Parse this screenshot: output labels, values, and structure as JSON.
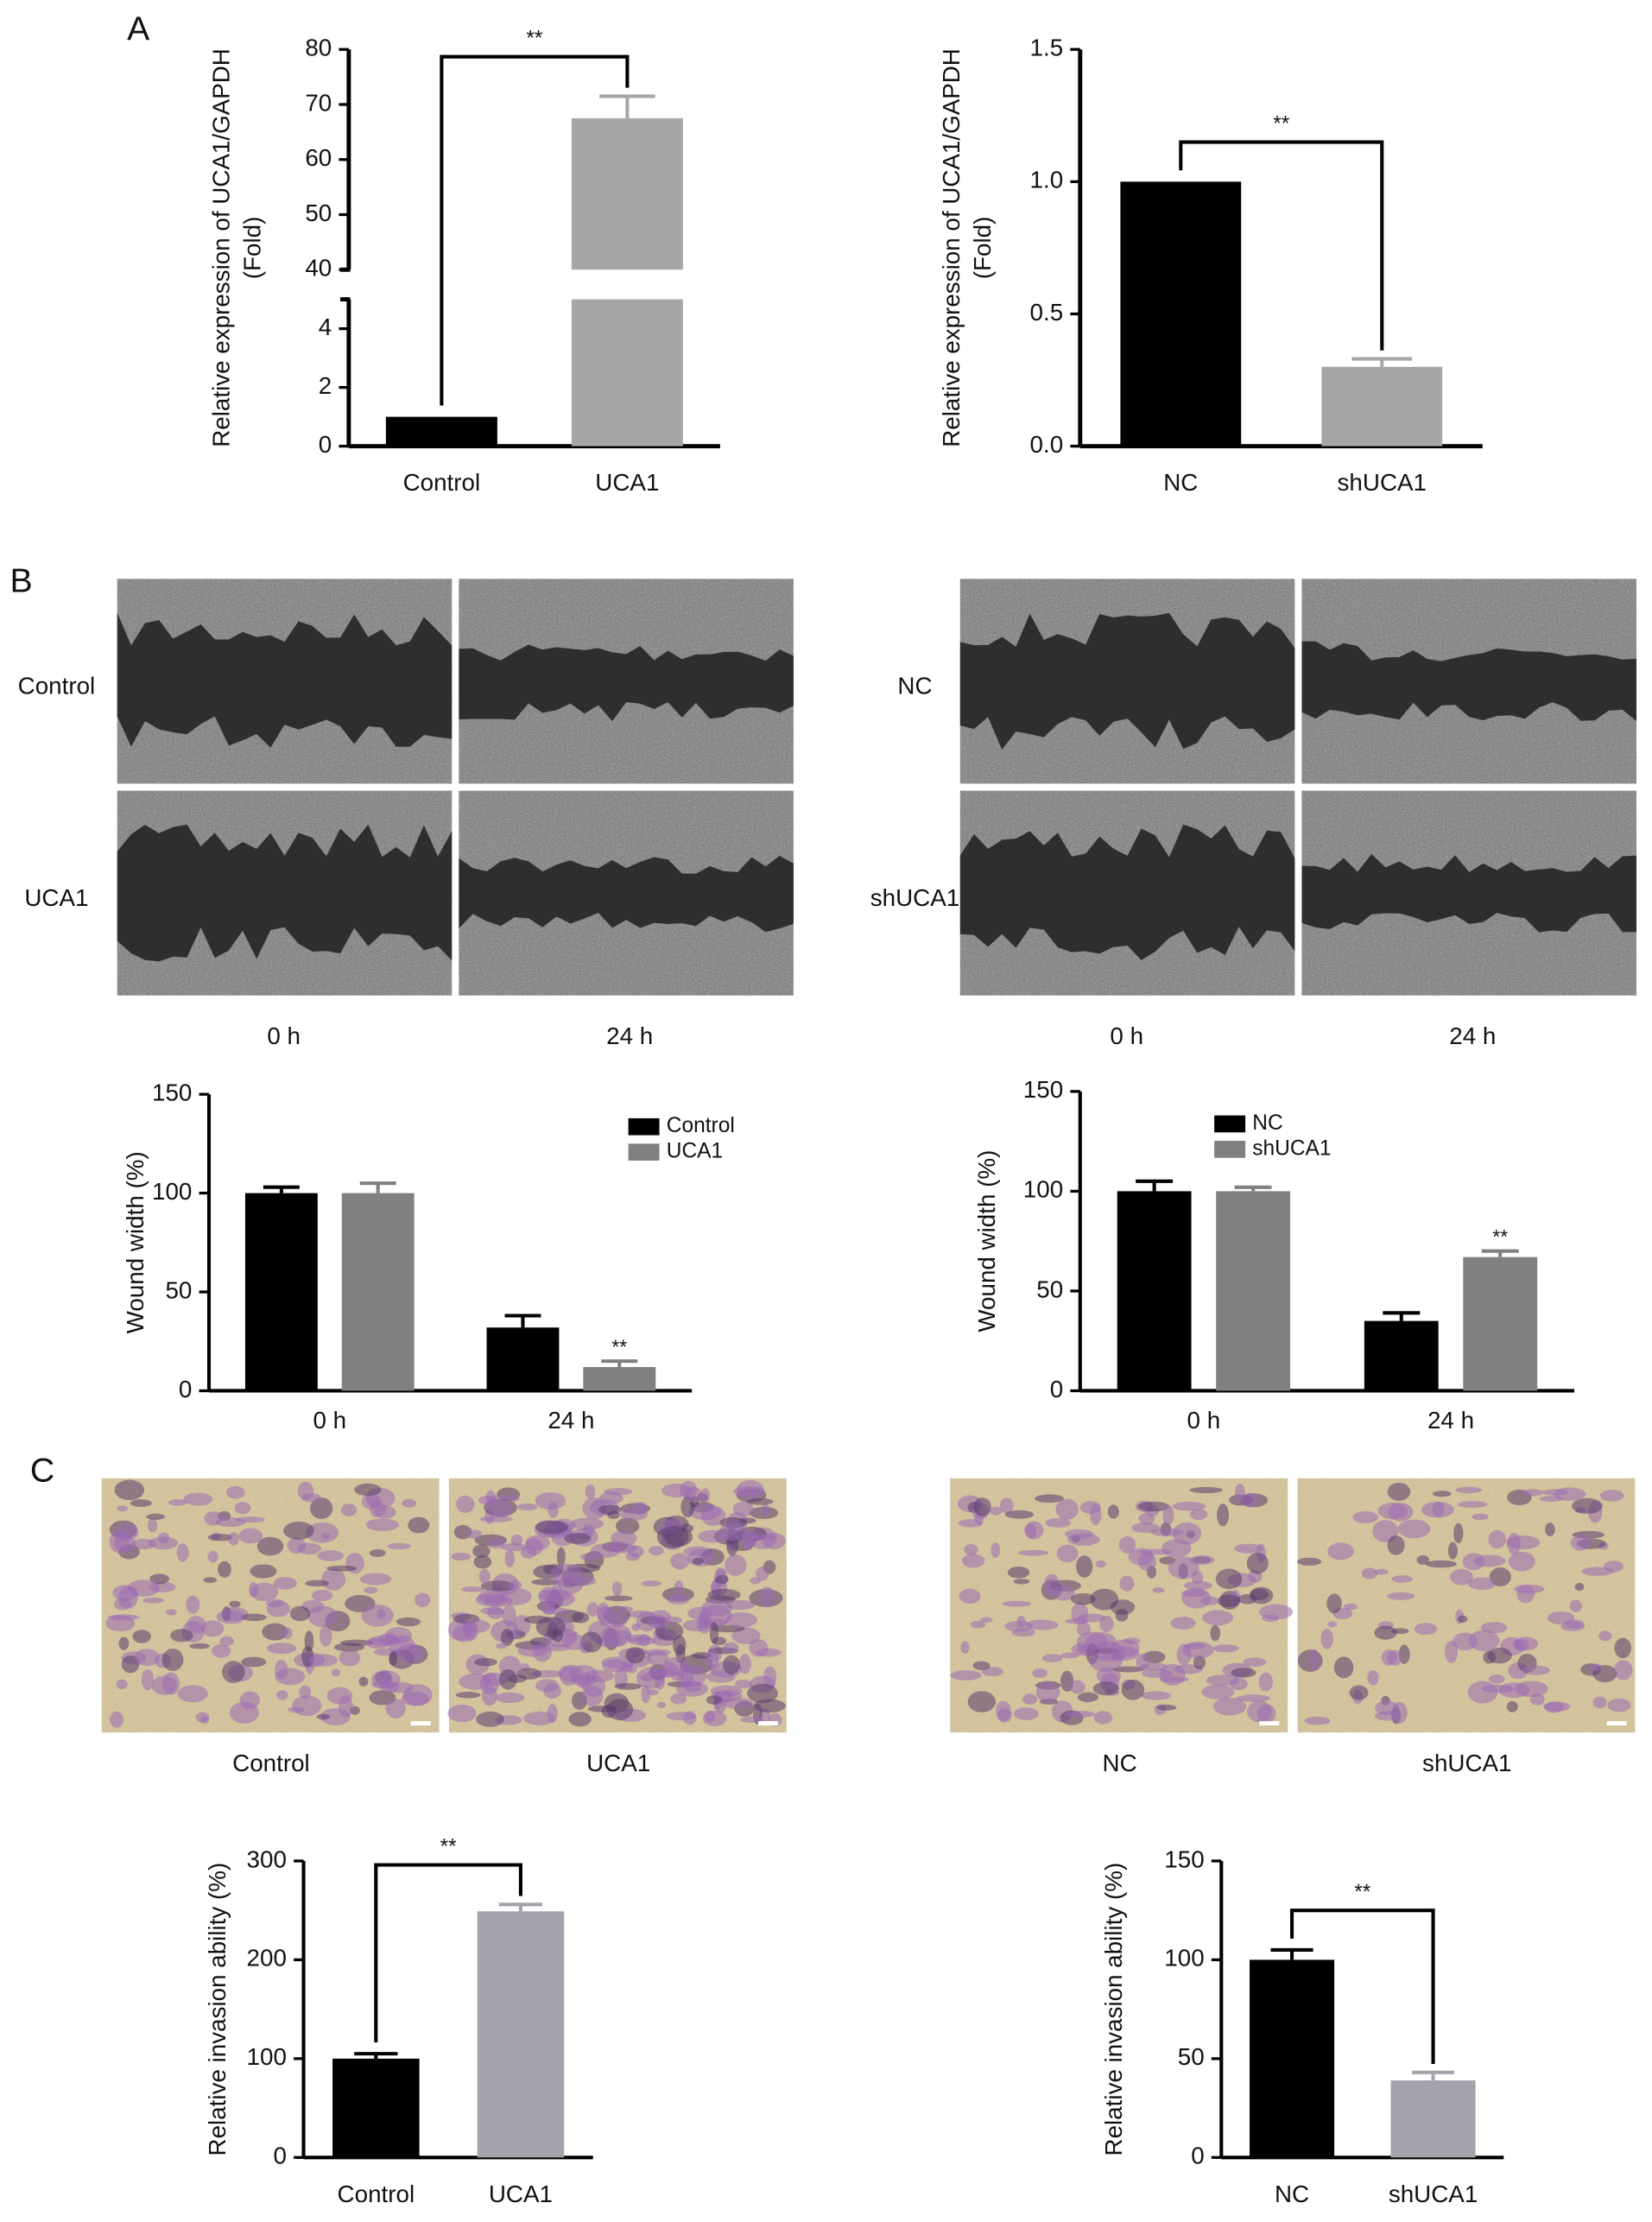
{
  "figure": {
    "panel_labels": [
      "A",
      "B",
      "C"
    ],
    "wound_left": {
      "rows": [
        "Control",
        "UCA1"
      ],
      "cols": [
        "0 h",
        "24 h"
      ]
    },
    "wound_right": {
      "rows": [
        "NC",
        "shUCA1"
      ],
      "cols": [
        "0 h",
        "24 h"
      ]
    },
    "invasion_left": [
      "Control",
      "UCA1"
    ],
    "invasion_right": [
      "NC",
      "shUCA1"
    ]
  },
  "chart_data": [
    {
      "type": "bar",
      "ylabel": [
        "Relative expression of UCA1/GAPDH",
        "(Fold)"
      ],
      "categories": [
        "Control",
        "UCA1"
      ],
      "values": [
        1,
        67.5
      ],
      "errors": [
        0,
        4
      ],
      "colors": [
        "#000000",
        "#a6a6a6"
      ],
      "ylim": [
        0,
        80
      ],
      "ybreak": [
        5,
        40
      ],
      "yticks": [
        0,
        2,
        4,
        40,
        50,
        60,
        70,
        80
      ],
      "annotation": "**"
    },
    {
      "type": "bar",
      "ylabel": [
        "Relative expression of UCA1/GAPDH",
        "(Fold)"
      ],
      "categories": [
        "NC",
        "shUCA1"
      ],
      "values": [
        1,
        0.3
      ],
      "errors": [
        0,
        0.03
      ],
      "colors": [
        "#000000",
        "#a6a6a6"
      ],
      "ylim": [
        0,
        1.5
      ],
      "yticks": [
        {
          "value": 0,
          "label": "0.0"
        },
        0.5,
        {
          "value": 1,
          "label": "1.0"
        },
        1.5
      ],
      "annotation": "**"
    },
    {
      "type": "grouped_bar",
      "ylabel": "Wound width (%)",
      "categories": [
        "0 h",
        "24 h"
      ],
      "series": [
        {
          "name": "Control",
          "color": "#000000",
          "values": [
            100,
            32
          ],
          "errors": [
            3,
            6
          ]
        },
        {
          "name": "UCA1",
          "color": "#808080",
          "values": [
            100,
            12
          ],
          "errors": [
            5,
            3
          ]
        }
      ],
      "ylim": [
        0,
        150
      ],
      "yticks": [
        0,
        50,
        100,
        150
      ],
      "legend": "upper right",
      "annotation": "**"
    },
    {
      "type": "grouped_bar",
      "ylabel": "Wound width (%)",
      "categories": [
        "0 h",
        "24 h"
      ],
      "series": [
        {
          "name": "NC",
          "color": "#000000",
          "values": [
            100,
            35
          ],
          "errors": [
            5,
            4
          ]
        },
        {
          "name": "shUCA1",
          "color": "#808080",
          "values": [
            100,
            67
          ],
          "errors": [
            2,
            3
          ]
        }
      ],
      "ylim": [
        0,
        150
      ],
      "yticks": [
        0,
        50,
        100,
        150
      ],
      "legend": "upper center",
      "annotation": "**"
    },
    {
      "type": "bar",
      "ylabel": "Relative invasion ability (%)",
      "categories": [
        "Control",
        "UCA1"
      ],
      "values": [
        100,
        249
      ],
      "errors": [
        5,
        7
      ],
      "colors": [
        "#000000",
        "#a3a3ab"
      ],
      "ylim": [
        0,
        300
      ],
      "yticks": [
        0,
        100,
        200,
        300
      ],
      "annotation": "**"
    },
    {
      "type": "bar",
      "ylabel": "Relative invasion ability (%)",
      "categories": [
        "NC",
        "shUCA1"
      ],
      "values": [
        100,
        39
      ],
      "errors": [
        5,
        4
      ],
      "colors": [
        "#000000",
        "#a3a3ab"
      ],
      "ylim": [
        0,
        150
      ],
      "yticks": [
        0,
        50,
        100,
        150
      ],
      "annotation": "**"
    }
  ]
}
